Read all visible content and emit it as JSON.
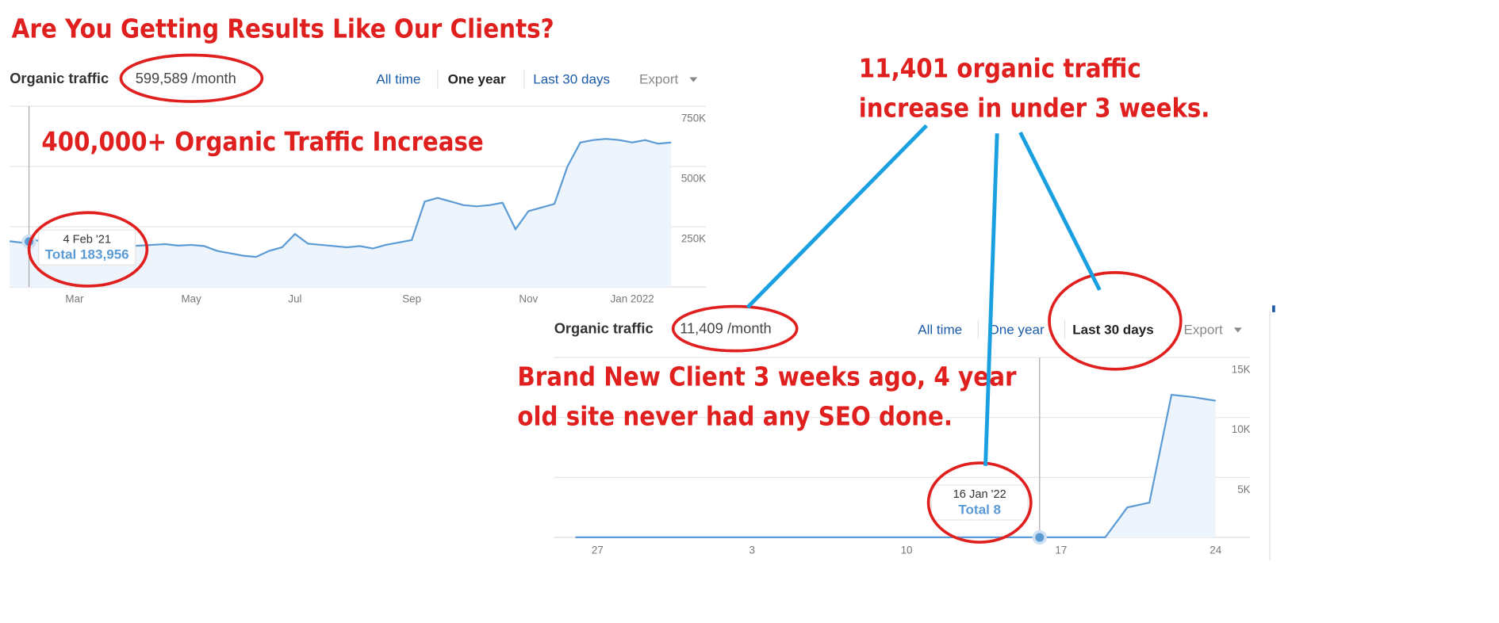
{
  "title": "Are You Getting Results Like Our Clients?",
  "annotations": [
    {
      "lines": [
        "11,401 organic traffic",
        "increase in under 3 weeks."
      ]
    },
    {
      "lines": [
        "Brand New Client 3 weeks ago, 4 year",
        "old site never had any SEO done."
      ]
    }
  ],
  "chart_data": [
    {
      "type": "line",
      "title": "Organic traffic",
      "metric": "599,589 /month",
      "periods": [
        "All time",
        "One year",
        "Last 30 days"
      ],
      "selected_period": 1,
      "export": "Export",
      "annotation": "400,000+ Organic Traffic Increase",
      "tooltip": {
        "date": "4 Feb '21",
        "total": "Total 183,956"
      },
      "color": "#5b9bd5",
      "fill": "#eef4fb",
      "categories": [
        null,
        null,
        null,
        null,
        null,
        "Mar",
        null,
        null,
        null,
        null,
        null,
        null,
        null,
        null,
        "May",
        null,
        null,
        null,
        null,
        null,
        null,
        null,
        "Jul",
        null,
        null,
        null,
        null,
        null,
        null,
        null,
        null,
        "Sep",
        null,
        null,
        null,
        null,
        null,
        null,
        null,
        null,
        "Nov",
        null,
        null,
        null,
        null,
        null,
        null,
        null,
        "Jan 2022",
        null,
        null,
        null
      ],
      "values": [
        190000,
        184000,
        195000,
        180000,
        175000,
        180000,
        185000,
        180000,
        175000,
        170000,
        172000,
        175000,
        178000,
        172000,
        175000,
        170000,
        150000,
        140000,
        130000,
        125000,
        150000,
        165000,
        220000,
        180000,
        175000,
        170000,
        165000,
        170000,
        160000,
        175000,
        185000,
        195000,
        355000,
        370000,
        355000,
        340000,
        335000,
        340000,
        350000,
        240000,
        315000,
        330000,
        345000,
        500000,
        600000,
        610000,
        615000,
        610000,
        600000,
        610000,
        595000,
        600000
      ],
      "ylim": [
        0,
        750000
      ],
      "yticks": [
        {
          "value": 250000,
          "label": "250K"
        },
        {
          "value": 500000,
          "label": "500K"
        },
        {
          "value": 750000,
          "label": "750K"
        }
      ]
    },
    {
      "type": "line",
      "title": "Organic traffic",
      "metric": "11,409 /month",
      "periods": [
        "All time",
        "One year",
        "Last 30 days"
      ],
      "selected_period": 2,
      "export": "Export",
      "tooltip": {
        "date": "16 Jan '22",
        "total": "Total 8"
      },
      "color": "#5b9bd5",
      "fill": "#eef4fb",
      "categories": [
        null,
        "27",
        null,
        null,
        null,
        null,
        null,
        null,
        "3",
        null,
        null,
        null,
        null,
        null,
        null,
        "10",
        null,
        null,
        null,
        null,
        null,
        null,
        "17",
        null,
        null,
        null,
        null,
        null,
        null,
        "24"
      ],
      "values": [
        8,
        8,
        8,
        8,
        8,
        8,
        8,
        8,
        8,
        8,
        8,
        8,
        8,
        8,
        8,
        8,
        8,
        8,
        8,
        8,
        8,
        8,
        8,
        8,
        8,
        2500,
        2900,
        11900,
        11700,
        11400
      ],
      "ylim": [
        0,
        15000
      ],
      "yticks": [
        {
          "value": 5000,
          "label": "5K"
        },
        {
          "value": 10000,
          "label": "10K"
        },
        {
          "value": 15000,
          "label": "15K"
        }
      ]
    }
  ]
}
